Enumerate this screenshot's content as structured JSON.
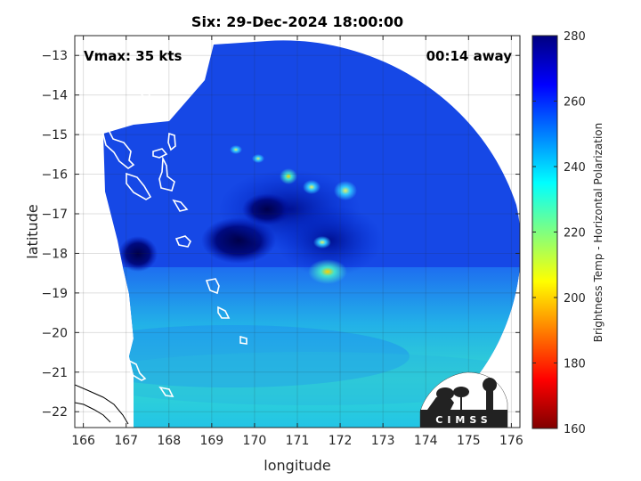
{
  "chart_data": {
    "type": "heatmap",
    "title": "Six: 29-Dec-2024 18:00:00",
    "xlabel": "longitude",
    "ylabel": "latitude",
    "xlim": [
      165.8,
      176.2
    ],
    "ylim": [
      -22.4,
      -12.5
    ],
    "xticks": [
      166,
      167,
      168,
      169,
      170,
      171,
      172,
      173,
      174,
      175,
      176
    ],
    "yticks": [
      -13,
      -14,
      -15,
      -16,
      -17,
      -18,
      -19,
      -20,
      -21,
      -22
    ],
    "grid": true,
    "annotations": {
      "vmax": "Vmax: 35 kts",
      "away": "00:14 away"
    },
    "colorbar": {
      "label": "Brightness Temp - Horizontal Polarization",
      "range": [
        160,
        280
      ],
      "ticks": [
        160,
        180,
        200,
        220,
        240,
        260,
        280
      ],
      "colormap": "jet"
    },
    "cold_features": [
      {
        "lon": 170.0,
        "lat": -17.7,
        "tb": 278,
        "kind": "cold-core"
      },
      {
        "lon": 170.3,
        "lat": -16.7,
        "tb": 275,
        "kind": "cold-core"
      },
      {
        "lon": 171.4,
        "lat": -16.9,
        "tb": 272,
        "kind": "cold-core"
      },
      {
        "lon": 167.4,
        "lat": -18.0,
        "tb": 280,
        "kind": "cold-core"
      },
      {
        "lon": 170.9,
        "lat": -16.0,
        "tb": 205,
        "kind": "warm-spot"
      },
      {
        "lon": 172.0,
        "lat": -18.5,
        "tb": 225,
        "kind": "warm-spot"
      },
      {
        "lon": 171.4,
        "lat": -16.3,
        "tb": 235,
        "kind": "warm-spot"
      },
      {
        "lon": 172.3,
        "lat": -16.4,
        "tb": 240,
        "kind": "warm-spot"
      }
    ],
    "south_band_tb": 235
  },
  "logo": {
    "text": "CIMSS"
  }
}
